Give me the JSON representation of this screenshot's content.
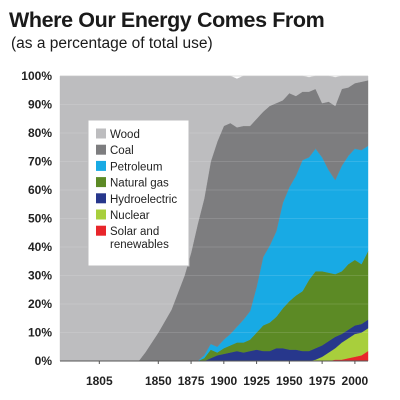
{
  "chart_data": {
    "type": "area",
    "stacked": true,
    "title": "Where Our Energy Comes From",
    "subtitle": "(as a percentage of total use)",
    "xlim": [
      1775,
      2010
    ],
    "ylim": [
      0,
      100
    ],
    "ytick_labels": [
      "0%",
      "10%",
      "20%",
      "30%",
      "40%",
      "50%",
      "60%",
      "70%",
      "80%",
      "90%",
      "100%"
    ],
    "ytick_values": [
      0,
      10,
      20,
      30,
      40,
      50,
      60,
      70,
      80,
      90,
      100
    ],
    "xtick_labels": [
      "1805",
      "1850",
      "1875",
      "1900",
      "1925",
      "1950",
      "1975",
      "2000"
    ],
    "xtick_values": [
      1805,
      1850,
      1875,
      1900,
      1925,
      1950,
      1975,
      2000
    ],
    "grid": "horizontal",
    "legend_position": "upper-left",
    "x": [
      1775,
      1800,
      1825,
      1835,
      1840,
      1850,
      1860,
      1865,
      1870,
      1875,
      1880,
      1885,
      1890,
      1895,
      1900,
      1905,
      1910,
      1915,
      1920,
      1925,
      1930,
      1935,
      1940,
      1945,
      1950,
      1955,
      1960,
      1965,
      1970,
      1975,
      1980,
      1985,
      1990,
      1995,
      2000,
      2005,
      2010
    ],
    "series": [
      {
        "name": "Solar and renewables",
        "color": "#e8262b",
        "values": [
          0,
          0,
          0,
          0,
          0,
          0,
          0,
          0,
          0,
          0,
          0,
          0,
          0,
          0,
          0,
          0,
          0,
          0,
          0,
          0,
          0,
          0,
          0,
          0,
          0,
          0,
          0,
          0,
          0,
          0,
          0,
          0.5,
          0.5,
          1,
          1.5,
          2,
          3.5
        ]
      },
      {
        "name": "Nuclear",
        "color": "#a8cf3c",
        "values": [
          0,
          0,
          0,
          0,
          0,
          0,
          0,
          0,
          0,
          0,
          0,
          0,
          0,
          0,
          0,
          0,
          0,
          0,
          0,
          0,
          0,
          0,
          0,
          0,
          0,
          0,
          0,
          0,
          0.5,
          1.5,
          3,
          4,
          6,
          7,
          8,
          8,
          8
        ]
      },
      {
        "name": "Hydroelectric",
        "color": "#27378c",
        "values": [
          0,
          0,
          0,
          0,
          0,
          0,
          0,
          0,
          0,
          0,
          0,
          0,
          1,
          2,
          2.5,
          3,
          3.5,
          3,
          3.5,
          4,
          3.5,
          3.5,
          4.5,
          4.5,
          4,
          4,
          3.5,
          3.5,
          4,
          4,
          4,
          4,
          3,
          3,
          3,
          3,
          3
        ]
      },
      {
        "name": "Natural gas",
        "color": "#5c8a25",
        "values": [
          0,
          0,
          0,
          0,
          0,
          0,
          0,
          0,
          0,
          0,
          0,
          1,
          3,
          1,
          2,
          2.5,
          3,
          3.5,
          4,
          6,
          9,
          10,
          11,
          14,
          17,
          19,
          21,
          25,
          27,
          26,
          24,
          22,
          22,
          23,
          23,
          21,
          24
        ]
      },
      {
        "name": "Petroleum",
        "color": "#18aae4",
        "values": [
          0,
          0,
          0,
          0,
          0,
          0,
          0,
          0,
          0,
          0,
          0,
          1,
          2,
          2,
          3,
          4,
          5.5,
          8,
          10,
          16,
          24,
          27,
          30,
          37,
          40,
          42,
          46,
          43,
          43,
          40,
          36,
          33,
          37,
          38,
          39,
          40,
          37
        ]
      },
      {
        "name": "Coal",
        "color": "#7d7d7f",
        "values": [
          0,
          0,
          0,
          0,
          3,
          10,
          18,
          24,
          30,
          38,
          48,
          55,
          64,
          72,
          75,
          74,
          70,
          68,
          65,
          59,
          51,
          49,
          45,
          36,
          33,
          28,
          24,
          23,
          21,
          19,
          24,
          26,
          27,
          24,
          23,
          24,
          23
        ]
      },
      {
        "name": "Wood",
        "color": "#bdbdbf",
        "values": [
          100,
          100,
          100,
          100,
          97,
          90,
          82,
          76,
          70,
          62,
          52,
          43,
          30,
          23,
          17.5,
          16.5,
          17,
          17.5,
          17.5,
          15,
          12.5,
          10.5,
          9.5,
          8.5,
          6,
          7,
          5.5,
          5,
          4.5,
          9.5,
          9,
          10,
          5,
          4,
          2.5,
          2,
          1.5
        ]
      }
    ],
    "legend": [
      "Wood",
      "Coal",
      "Petroleum",
      "Natural gas",
      "Hydroelectric",
      "Nuclear",
      "Solar and renewables"
    ],
    "legend_lines": [
      [
        "Wood"
      ],
      [
        "Coal"
      ],
      [
        "Petroleum"
      ],
      [
        "Natural gas"
      ],
      [
        "Hydroelectric"
      ],
      [
        "Nuclear"
      ],
      [
        "Solar and",
        "renewables"
      ]
    ]
  }
}
